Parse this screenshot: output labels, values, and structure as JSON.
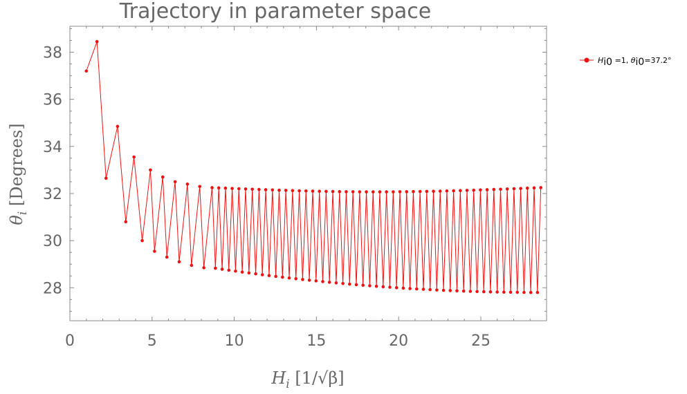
{
  "chart_data": {
    "type": "line",
    "title": "Trajectory in parameter space",
    "xlabel": "H_i [1/√β]",
    "ylabel": "θ_i [Degrees]",
    "xlim": [
      0,
      29
    ],
    "ylim": [
      26.6,
      39.1
    ],
    "x_ticks": [
      0,
      5,
      10,
      15,
      20,
      25
    ],
    "y_ticks": [
      28,
      30,
      32,
      34,
      36,
      38
    ],
    "grid": false,
    "legend_position": "right",
    "colors": {
      "series": "#ee1111",
      "axis": "#888888",
      "text": "#666666"
    },
    "series": [
      {
        "name": "H_i0=1, θ_i0=37.2°",
        "marker": "dot",
        "x_start": 1.0,
        "x_step": 0.2445,
        "n_points": 116,
        "points_explicit": [
          [
            1.0,
            37.2
          ],
          [
            1.65,
            38.45
          ],
          [
            2.2,
            32.65
          ],
          [
            2.9,
            34.85
          ],
          [
            3.4,
            30.8
          ],
          [
            3.9,
            33.55
          ],
          [
            4.4,
            30.0
          ],
          [
            4.9,
            33.0
          ],
          [
            5.15,
            29.55
          ],
          [
            5.65,
            32.7
          ],
          [
            5.9,
            29.3
          ],
          [
            6.4,
            32.5
          ],
          [
            6.65,
            29.1
          ],
          [
            7.15,
            32.4
          ],
          [
            7.4,
            28.95
          ],
          [
            7.9,
            32.3
          ],
          [
            8.15,
            28.85
          ],
          [
            8.65,
            32.25
          ]
        ],
        "low_branch_end": [
          28.65,
          27.8
        ],
        "high_branch_end": [
          28.65,
          32.25
        ]
      }
    ],
    "legend": [
      {
        "prefix": "H",
        "prefix_sub": "i0",
        "eq1": " =1, ",
        "theta": "θ",
        "theta_sub": "i0",
        "eq2": "=37.2°"
      }
    ]
  }
}
